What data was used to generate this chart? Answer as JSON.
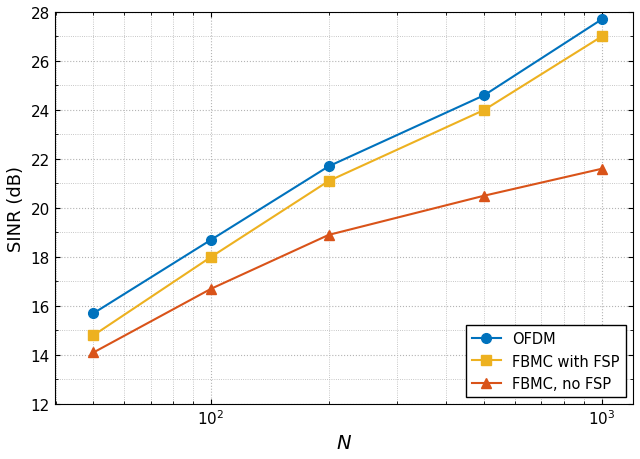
{
  "x": [
    50,
    100,
    200,
    500,
    1000
  ],
  "ofdm_y": [
    15.7,
    18.7,
    21.7,
    24.6,
    27.7
  ],
  "fbmc_fsp_y": [
    14.8,
    18.0,
    21.1,
    24.0,
    27.0
  ],
  "fbmc_nofsp_y": [
    14.1,
    16.7,
    18.9,
    20.5,
    21.6
  ],
  "xlim_log": [
    1.6,
    3.08
  ],
  "ylim": [
    12,
    28
  ],
  "yticks": [
    12,
    14,
    16,
    18,
    20,
    22,
    24,
    26,
    28
  ],
  "ylabel": "SINR (dB)",
  "xlabel": "$N$",
  "ofdm_color": "#0072BD",
  "fbmc_fsp_color": "#EDB120",
  "fbmc_nofsp_color": "#D95319",
  "legend_labels": [
    "OFDM",
    "FBMC with FSP",
    "FBMC, no FSP"
  ],
  "grid_color": "#b4b4b4",
  "bg_color": "#ffffff",
  "linewidth": 1.5,
  "markersize": 7,
  "fig_width": 6.4,
  "fig_height": 4.6,
  "dpi": 100
}
